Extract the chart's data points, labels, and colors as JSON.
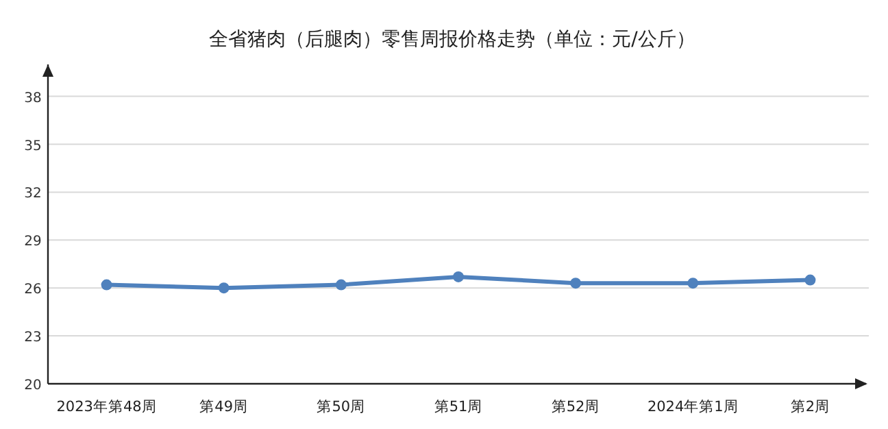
{
  "chart_data": {
    "type": "line",
    "title": "全省猪肉（后腿肉）零售周报价格走势（单位：元/公斤）",
    "categories": [
      "2023年第48周",
      "第49周",
      "第50周",
      "第51周",
      "第52周",
      "2024年第1周",
      "第2周"
    ],
    "series": [
      {
        "color": "#4f81bd",
        "values": [
          26.2,
          26.0,
          26.2,
          26.7,
          26.3,
          26.3,
          26.5
        ]
      }
    ],
    "ylim": [
      20,
      40
    ],
    "yticks": [
      20,
      23,
      26,
      29,
      32,
      35,
      38
    ],
    "grid": "y",
    "marker": "circle",
    "line_style": "solid"
  }
}
